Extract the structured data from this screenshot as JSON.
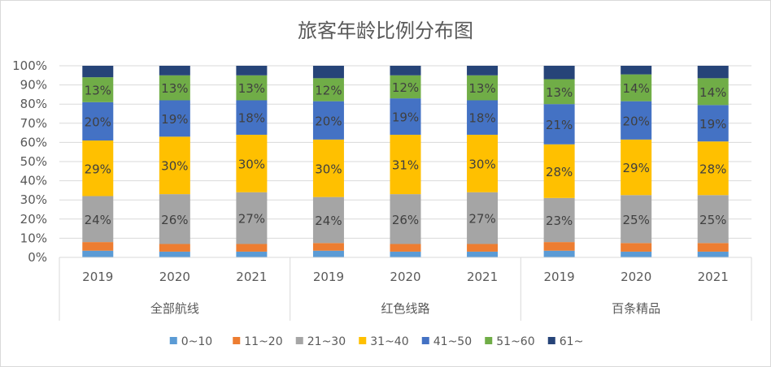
{
  "chart_data": {
    "type": "bar",
    "stacked": "percent",
    "title": "旅客年龄比例分布图",
    "y_ticks": [
      "0%",
      "10%",
      "20%",
      "30%",
      "40%",
      "50%",
      "60%",
      "70%",
      "80%",
      "90%",
      "100%"
    ],
    "ylim": [
      0,
      100
    ],
    "groups": [
      {
        "label": "全部航线",
        "categories": [
          "2019",
          "2020",
          "2021"
        ]
      },
      {
        "label": "红色线路",
        "categories": [
          "2019",
          "2020",
          "2021"
        ]
      },
      {
        "label": "百条精品",
        "categories": [
          "2019",
          "2020",
          "2021"
        ]
      }
    ],
    "series": [
      {
        "name": "0~10",
        "color": "#5b9bd5",
        "values": [
          3.5,
          3.0,
          3.0,
          3.5,
          3.0,
          3.0,
          3.5,
          3.0,
          3.0
        ]
      },
      {
        "name": "11~20",
        "color": "#ed7d31",
        "values": [
          4.5,
          4.0,
          4.0,
          4.0,
          4.0,
          4.0,
          4.5,
          4.5,
          4.5
        ]
      },
      {
        "name": "21~30",
        "color": "#a5a5a5",
        "values": [
          24,
          26,
          27,
          24,
          26,
          27,
          23,
          25,
          25
        ]
      },
      {
        "name": "31~40",
        "color": "#ffc000",
        "values": [
          29,
          30,
          30,
          30,
          31,
          30,
          28,
          29,
          28
        ]
      },
      {
        "name": "41~50",
        "color": "#4472c4",
        "values": [
          20,
          19,
          18,
          20,
          19,
          18,
          21,
          20,
          19
        ]
      },
      {
        "name": "51~60",
        "color": "#70ad47",
        "values": [
          13,
          13,
          13,
          12,
          12,
          13,
          13,
          14,
          14
        ]
      },
      {
        "name": "61~",
        "color": "#264478",
        "values": [
          6,
          5,
          5,
          6.5,
          5,
          5,
          7,
          4.5,
          6.5
        ]
      }
    ],
    "data_labels": {
      "21~30": [
        "24%",
        "26%",
        "27%",
        "24%",
        "26%",
        "27%",
        "23%",
        "25%",
        "25%"
      ],
      "31~40": [
        "29%",
        "30%",
        "30%",
        "30%",
        "31%",
        "30%",
        "28%",
        "29%",
        "28%"
      ],
      "41~50": [
        "20%",
        "19%",
        "18%",
        "20%",
        "19%",
        "18%",
        "21%",
        "20%",
        "19%"
      ],
      "51~60": [
        "13%",
        "13%",
        "13%",
        "12%",
        "12%",
        "13%",
        "13%",
        "14%",
        "14%"
      ]
    },
    "grid": true,
    "legend_position": "bottom"
  }
}
